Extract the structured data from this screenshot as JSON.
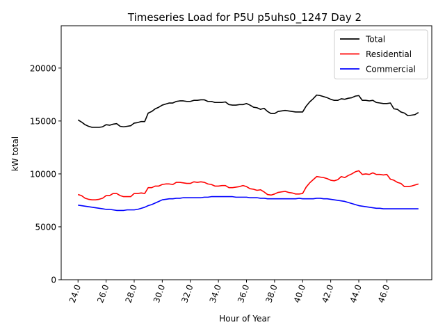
{
  "chart_data": {
    "type": "line",
    "title": "Timeseries Load for P5U p5uhs0_1247  Day 2",
    "xlabel": "Hour of Year",
    "ylabel": "kW total",
    "xlim": [
      22.8,
      49.2
    ],
    "ylim": [
      0,
      24000
    ],
    "xticks": [
      24,
      26,
      28,
      30,
      32,
      34,
      36,
      38,
      40,
      42,
      44,
      46
    ],
    "xtick_labels": [
      "24.0",
      "26.0",
      "28.0",
      "30.0",
      "32.0",
      "34.0",
      "36.0",
      "38.0",
      "40.0",
      "42.0",
      "44.0",
      "46.0"
    ],
    "yticks": [
      0,
      5000,
      10000,
      15000,
      20000
    ],
    "ytick_labels": [
      "0",
      "5000",
      "10000",
      "15000",
      "20000"
    ],
    "legend_position": "top-right",
    "x_start": 24.0,
    "x_step": 0.25,
    "series": [
      {
        "name": "Total",
        "color": "#000000",
        "values": [
          15100,
          14900,
          14650,
          14500,
          14400,
          14400,
          14400,
          14450,
          14650,
          14600,
          14700,
          14750,
          14500,
          14450,
          14500,
          14550,
          14800,
          14850,
          14950,
          14950,
          15750,
          15900,
          16150,
          16300,
          16500,
          16600,
          16700,
          16700,
          16850,
          16900,
          16900,
          16850,
          16850,
          16950,
          16950,
          17000,
          17000,
          16850,
          16850,
          16750,
          16750,
          16750,
          16800,
          16550,
          16500,
          16500,
          16550,
          16550,
          16650,
          16500,
          16300,
          16250,
          16100,
          16200,
          15900,
          15700,
          15700,
          15900,
          15950,
          16000,
          15950,
          15900,
          15850,
          15850,
          15850,
          16400,
          16800,
          17100,
          17450,
          17400,
          17300,
          17200,
          17050,
          16950,
          16950,
          17100,
          17050,
          17150,
          17200,
          17350,
          17400,
          16950,
          16950,
          16900,
          16950,
          16750,
          16700,
          16650,
          16650,
          16700,
          16150,
          16100,
          15850,
          15750,
          15500,
          15550,
          15600,
          15800
        ]
      },
      {
        "name": "Residential",
        "color": "#ff0000",
        "values": [
          8050,
          7950,
          7700,
          7600,
          7550,
          7550,
          7600,
          7700,
          7950,
          7950,
          8150,
          8150,
          7950,
          7850,
          7850,
          7850,
          8150,
          8150,
          8200,
          8150,
          8700,
          8700,
          8850,
          8850,
          9000,
          9050,
          9050,
          9000,
          9200,
          9200,
          9150,
          9100,
          9100,
          9250,
          9200,
          9250,
          9200,
          9050,
          9000,
          8850,
          8850,
          8900,
          8900,
          8700,
          8700,
          8750,
          8800,
          8900,
          8800,
          8600,
          8550,
          8450,
          8500,
          8300,
          8050,
          8000,
          8100,
          8250,
          8300,
          8350,
          8250,
          8200,
          8100,
          8100,
          8150,
          8750,
          9150,
          9450,
          9750,
          9700,
          9650,
          9550,
          9400,
          9350,
          9450,
          9750,
          9650,
          9850,
          10000,
          10200,
          10300,
          9950,
          10000,
          9950,
          10100,
          9950,
          9950,
          9900,
          9950,
          9500,
          9400,
          9200,
          9100,
          8800,
          8800,
          8850,
          8950,
          9050
        ]
      },
      {
        "name": "Commercial",
        "color": "#0000ff",
        "values": [
          7050,
          7000,
          6950,
          6900,
          6850,
          6800,
          6750,
          6700,
          6650,
          6650,
          6600,
          6550,
          6550,
          6550,
          6600,
          6600,
          6600,
          6650,
          6750,
          6850,
          7000,
          7100,
          7250,
          7400,
          7550,
          7600,
          7650,
          7650,
          7700,
          7700,
          7750,
          7750,
          7750,
          7750,
          7750,
          7750,
          7800,
          7800,
          7850,
          7850,
          7850,
          7850,
          7850,
          7850,
          7850,
          7800,
          7800,
          7800,
          7800,
          7750,
          7750,
          7750,
          7700,
          7700,
          7650,
          7650,
          7650,
          7650,
          7650,
          7650,
          7650,
          7650,
          7650,
          7700,
          7650,
          7650,
          7650,
          7650,
          7700,
          7700,
          7650,
          7650,
          7600,
          7550,
          7500,
          7450,
          7400,
          7300,
          7200,
          7100,
          7000,
          6950,
          6900,
          6850,
          6800,
          6750,
          6750,
          6700,
          6700,
          6700,
          6700,
          6700,
          6700,
          6700,
          6700,
          6700,
          6700,
          6700
        ]
      }
    ]
  }
}
